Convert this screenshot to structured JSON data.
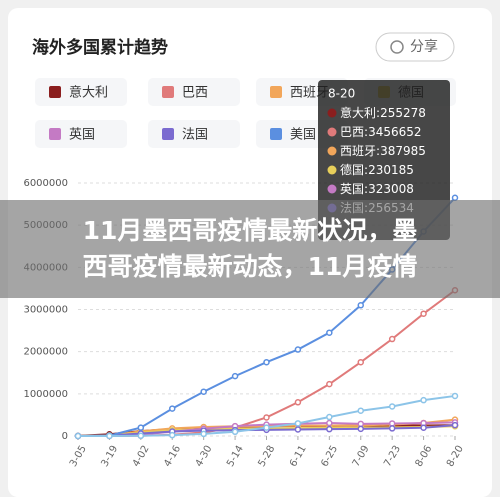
{
  "chart_data": {
    "type": "line",
    "title": "海外多国累计趋势",
    "share": "分享",
    "categories": [
      "3-05",
      "3-19",
      "4-02",
      "4-16",
      "4-30",
      "5-14",
      "5-28",
      "6-11",
      "6-25",
      "7-09",
      "7-23",
      "8-06",
      "8-20"
    ],
    "ylim": [
      0,
      6000000
    ],
    "yticks": [
      0,
      1000000,
      2000000,
      3000000,
      4000000,
      5000000,
      6000000
    ],
    "grid": true,
    "series": [
      {
        "name": "意大利",
        "color": "#8b1e1e",
        "values": [
          3858,
          41000,
          115000,
          166000,
          205000,
          222000,
          231000,
          236000,
          240000,
          242000,
          245000,
          249000,
          255278
        ]
      },
      {
        "name": "巴西",
        "color": "#e07a7a",
        "values": [
          0,
          0,
          7000,
          30000,
          85000,
          200000,
          440000,
          800000,
          1230000,
          1750000,
          2300000,
          2900000,
          3456652
        ]
      },
      {
        "name": "西班牙",
        "color": "#f2a65a",
        "values": [
          0,
          13000,
          110000,
          180000,
          213000,
          230000,
          238000,
          242000,
          247000,
          253000,
          272000,
          309000,
          387985
        ]
      },
      {
        "name": "德国",
        "color": "#e8cf5a",
        "values": [
          0,
          15000,
          80000,
          135000,
          163000,
          174000,
          181000,
          186000,
          194000,
          199000,
          205000,
          214000,
          230185
        ]
      },
      {
        "name": "英国",
        "color": "#c47ac4",
        "values": [
          0,
          2700,
          34000,
          104000,
          172000,
          234000,
          270000,
          290000,
          307000,
          289000,
          297000,
          306000,
          323008
        ]
      },
      {
        "name": "法国",
        "color": "#7b6bd0",
        "values": [
          0,
          9000,
          60000,
          108000,
          128000,
          140000,
          145000,
          155000,
          162000,
          170000,
          180000,
          197000,
          256534
        ]
      },
      {
        "name": "美国",
        "color": "#5b8fe0",
        "values": [
          0,
          10000,
          200000,
          650000,
          1050000,
          1420000,
          1750000,
          2050000,
          2450000,
          3100000,
          3950000,
          4850000,
          5650000
        ]
      },
      {
        "color": "#8cc4e8",
        "values": [
          0,
          0,
          5000,
          20000,
          50000,
          100000,
          200000,
          300000,
          450000,
          600000,
          700000,
          850000,
          950000
        ]
      }
    ],
    "tooltip": {
      "title": "8-20",
      "separator": ":"
    },
    "banner": {
      "lines": [
        "11月墨西哥疫情最新状况，墨",
        "西哥疫情最新动态，11月疫情"
      ]
    }
  }
}
